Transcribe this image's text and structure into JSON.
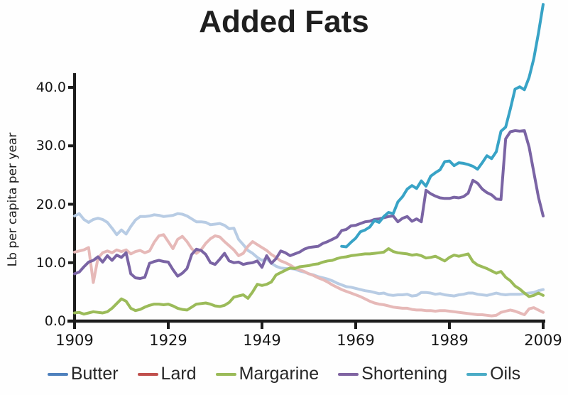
{
  "chart_data": {
    "type": "line",
    "title": "Added Fats",
    "xlabel": "",
    "ylabel": "Lb per capita per year",
    "xlim": [
      1909,
      2009
    ],
    "ylim": [
      0,
      42
    ],
    "grid": false,
    "legend_position": "bottom",
    "axis_color": "#1c1c1c",
    "y_ticks": [
      {
        "value": 0,
        "label": "0.0"
      },
      {
        "value": 10,
        "label": "10.0"
      },
      {
        "value": 20,
        "label": "20.0"
      },
      {
        "value": 30,
        "label": "30.0"
      },
      {
        "value": 40,
        "label": "40.0"
      }
    ],
    "x_ticks": [
      {
        "value": 1909,
        "label": "1909"
      },
      {
        "value": 1929,
        "label": "1929"
      },
      {
        "value": 1949,
        "label": "1949"
      },
      {
        "value": 1969,
        "label": "1969"
      },
      {
        "value": 1989,
        "label": "1989"
      },
      {
        "value": 2009,
        "label": "2009"
      }
    ],
    "series": [
      {
        "name": "Butter",
        "legend_color": "#4f81bd",
        "line_color": "#b8cce4",
        "start_year": 1909,
        "values": [
          18.0,
          18.4,
          17.4,
          16.9,
          17.4,
          17.6,
          17.4,
          16.9,
          15.9,
          14.8,
          15.6,
          14.9,
          16.2,
          17.3,
          17.9,
          17.9,
          18.0,
          18.2,
          18.1,
          17.9,
          18.0,
          18.1,
          18.4,
          18.3,
          18.0,
          17.5,
          17.0,
          17.0,
          16.9,
          16.5,
          16.6,
          16.7,
          16.4,
          15.8,
          15.9,
          14.0,
          13.1,
          12.1,
          11.6,
          10.9,
          10.4,
          10.7,
          9.9,
          9.4,
          9.1,
          9.0,
          9.0,
          8.9,
          8.6,
          8.4,
          8.1,
          7.9,
          7.6,
          7.4,
          7.2,
          6.9,
          6.5,
          6.2,
          5.9,
          5.8,
          5.6,
          5.4,
          5.2,
          5.1,
          4.9,
          4.7,
          4.8,
          4.5,
          4.4,
          4.5,
          4.5,
          4.6,
          4.3,
          4.4,
          4.9,
          4.9,
          4.8,
          4.6,
          4.7,
          4.5,
          4.4,
          4.3,
          4.5,
          4.6,
          4.8,
          4.8,
          4.6,
          4.5,
          4.4,
          4.6,
          4.8,
          4.6,
          4.5,
          4.6,
          4.6,
          4.6,
          4.7,
          4.8,
          4.9,
          5.2,
          5.4
        ]
      },
      {
        "name": "Lard",
        "legend_color": "#c0504d",
        "line_color": "#e6b9b8",
        "start_year": 1909,
        "values": [
          11.8,
          12.0,
          12.2,
          12.6,
          6.6,
          10.8,
          11.7,
          12.0,
          11.7,
          12.2,
          11.9,
          12.2,
          11.5,
          11.9,
          12.1,
          11.7,
          12.0,
          13.5,
          14.6,
          14.8,
          13.6,
          12.4,
          14.0,
          14.5,
          13.6,
          12.4,
          11.6,
          12.2,
          13.3,
          14.1,
          14.6,
          14.4,
          13.6,
          12.9,
          12.2,
          11.2,
          11.6,
          12.8,
          13.6,
          13.1,
          12.6,
          12.1,
          11.4,
          10.9,
          10.3,
          10.0,
          9.6,
          9.1,
          8.8,
          8.5,
          8.1,
          7.8,
          7.4,
          7.1,
          6.7,
          6.2,
          5.8,
          5.4,
          5.1,
          4.8,
          4.5,
          4.2,
          3.8,
          3.4,
          3.1,
          2.9,
          2.8,
          2.6,
          2.4,
          2.3,
          2.2,
          2.2,
          2.0,
          1.9,
          1.9,
          1.8,
          1.8,
          1.7,
          1.8,
          1.8,
          1.7,
          1.6,
          1.5,
          1.4,
          1.3,
          1.2,
          1.1,
          1.1,
          1.0,
          0.9,
          1.0,
          1.5,
          1.7,
          1.9,
          1.7,
          1.4,
          1.1,
          2.1,
          2.3,
          1.9,
          1.5
        ]
      },
      {
        "name": "Margarine",
        "legend_color": "#9bbb59",
        "line_color": "#9bbb59",
        "start_year": 1909,
        "values": [
          1.4,
          1.5,
          1.2,
          1.4,
          1.6,
          1.5,
          1.4,
          1.6,
          2.2,
          3.0,
          3.8,
          3.4,
          2.2,
          1.8,
          2.0,
          2.4,
          2.7,
          2.9,
          2.9,
          2.8,
          2.9,
          2.6,
          2.2,
          2.0,
          1.9,
          2.4,
          2.9,
          3.0,
          3.1,
          2.9,
          2.6,
          2.5,
          2.7,
          3.2,
          4.1,
          4.3,
          4.5,
          3.9,
          5.0,
          6.3,
          6.1,
          6.3,
          6.7,
          7.9,
          8.3,
          8.7,
          9.1,
          9.0,
          9.3,
          9.4,
          9.5,
          9.7,
          9.8,
          10.1,
          10.3,
          10.4,
          10.7,
          10.9,
          11.0,
          11.2,
          11.3,
          11.4,
          11.5,
          11.5,
          11.6,
          11.7,
          11.8,
          12.4,
          11.9,
          11.7,
          11.6,
          11.5,
          11.3,
          11.4,
          11.2,
          10.8,
          10.9,
          11.1,
          10.7,
          10.3,
          10.9,
          11.3,
          11.1,
          11.3,
          11.5,
          10.2,
          9.6,
          9.3,
          9.0,
          8.6,
          8.2,
          8.5,
          7.5,
          6.9,
          6.0,
          5.5,
          4.8,
          4.2,
          4.4,
          4.8,
          4.4
        ]
      },
      {
        "name": "Shortening",
        "legend_color": "#8064a2",
        "line_color": "#7a64a4",
        "start_year": 1909,
        "values": [
          8.1,
          8.4,
          9.3,
          10.1,
          10.4,
          11.0,
          10.1,
          11.2,
          10.4,
          11.3,
          10.9,
          11.7,
          8.1,
          7.4,
          7.3,
          7.5,
          9.9,
          10.2,
          10.4,
          10.2,
          10.1,
          8.8,
          7.7,
          8.2,
          9.0,
          11.4,
          12.3,
          12.1,
          11.4,
          10.0,
          9.7,
          10.6,
          11.6,
          10.3,
          10.0,
          10.1,
          9.7,
          9.9,
          10.0,
          10.3,
          9.2,
          11.2,
          9.9,
          10.7,
          12.0,
          11.7,
          11.2,
          11.5,
          11.8,
          12.3,
          12.6,
          12.7,
          12.8,
          13.3,
          13.6,
          14.0,
          14.4,
          15.5,
          15.7,
          16.3,
          16.4,
          16.7,
          17.0,
          17.1,
          17.4,
          17.5,
          17.7,
          17.9,
          18.0,
          17.0,
          17.6,
          17.9,
          17.1,
          17.5,
          17.0,
          22.4,
          21.8,
          21.4,
          21.1,
          21.0,
          21.0,
          21.2,
          21.1,
          21.3,
          21.9,
          24.1,
          23.6,
          22.6,
          22.0,
          21.6,
          20.9,
          20.8,
          31.2,
          32.4,
          32.6,
          32.5,
          32.6,
          29.8,
          25.5,
          21.2,
          18.0
        ]
      },
      {
        "name": "Oils",
        "legend_color": "#4bacc6",
        "line_color": "#38a3c6",
        "start_year": 1966,
        "values": [
          12.8,
          12.7,
          13.5,
          14.2,
          15.3,
          15.6,
          16.1,
          17.2,
          16.9,
          17.9,
          18.6,
          18.4,
          20.4,
          21.3,
          22.6,
          23.2,
          22.7,
          24.0,
          23.1,
          24.8,
          25.4,
          25.9,
          27.3,
          27.4,
          26.6,
          27.1,
          27.0,
          26.8,
          26.5,
          26.0,
          27.1,
          28.3,
          27.8,
          29.0,
          32.5,
          33.2,
          36.3,
          39.7,
          40.1,
          39.6,
          41.7,
          44.9,
          49.3,
          54.2
        ]
      }
    ]
  }
}
